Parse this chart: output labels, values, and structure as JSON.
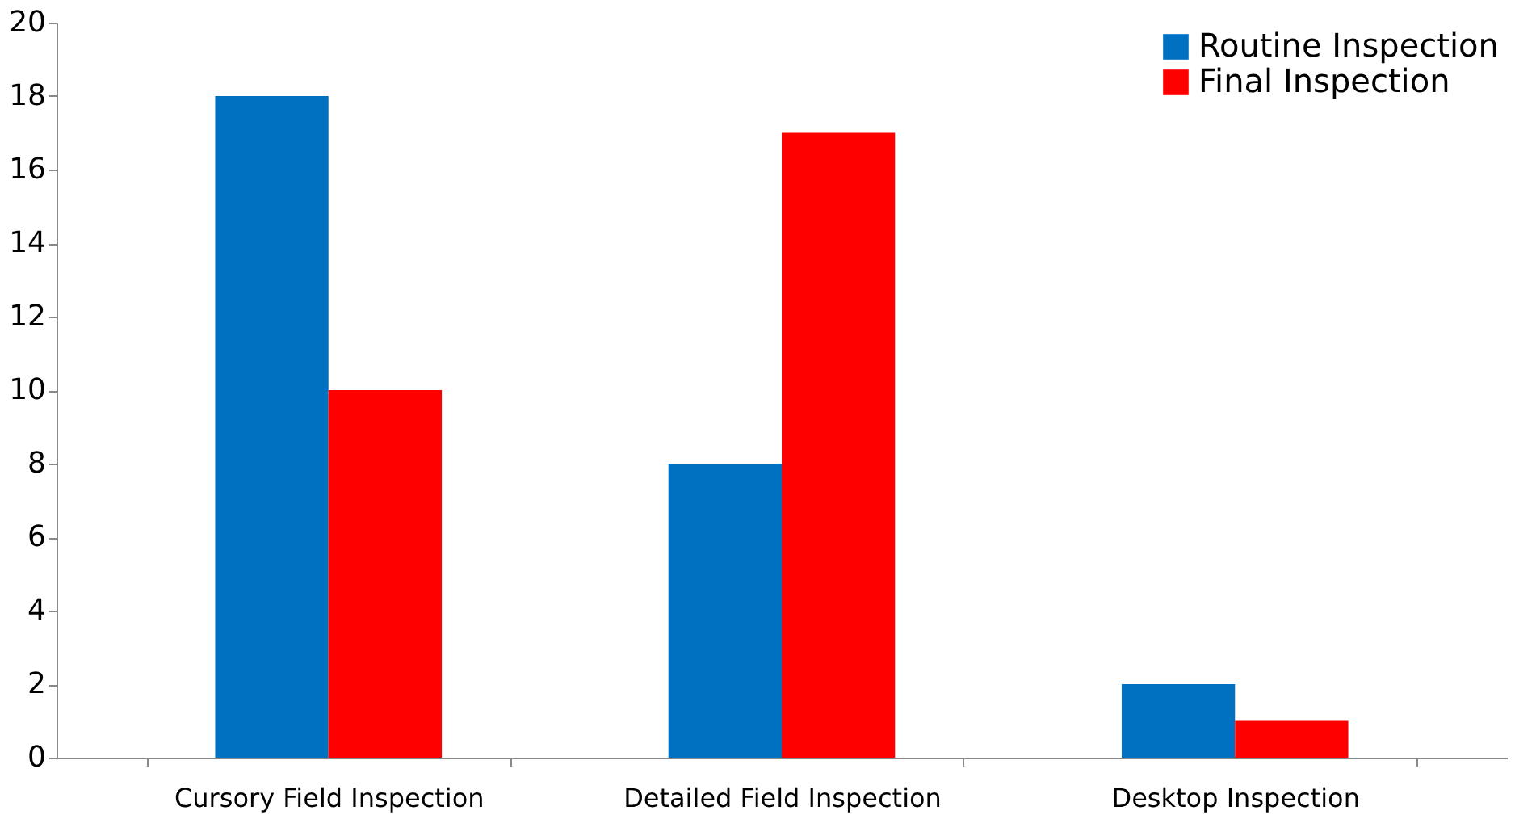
{
  "chart_data": {
    "type": "bar",
    "categories": [
      "Cursory Field Inspection",
      "Detailed Field Inspection",
      "Desktop Inspection"
    ],
    "series": [
      {
        "name": "Routine Inspection",
        "color": "#0070c0",
        "values": [
          18,
          8,
          2
        ]
      },
      {
        "name": "Final Inspection",
        "color": "#ff0000",
        "values": [
          10,
          17,
          1
        ]
      }
    ],
    "ylim": [
      0,
      20
    ],
    "yticks": [
      0,
      2,
      4,
      6,
      8,
      10,
      12,
      14,
      16,
      18,
      20
    ],
    "grid": false,
    "legend": "right"
  }
}
